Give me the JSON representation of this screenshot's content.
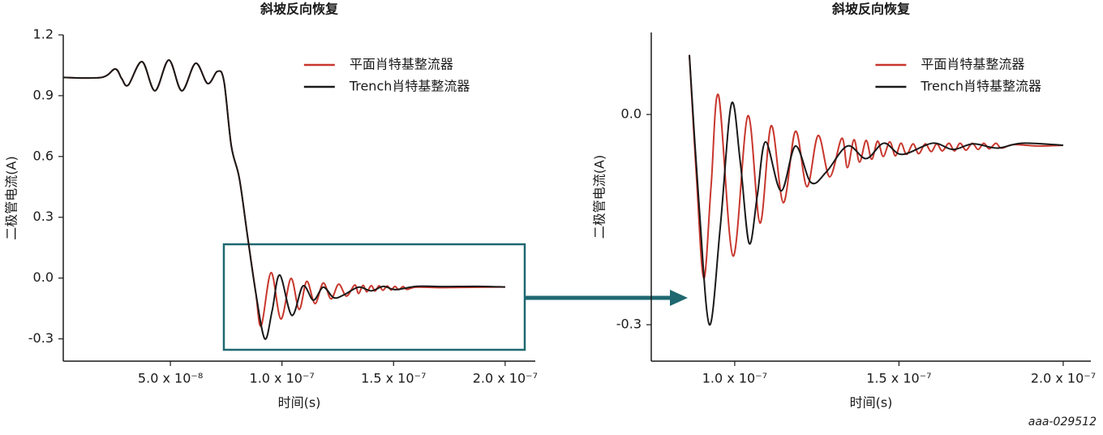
{
  "chart_data": [
    {
      "type": "line",
      "title": "斜坡反向恢复",
      "xlabel": "时间(s)",
      "ylabel": "二极管电流(A)",
      "xlim": [
        2e-09,
        2.135e-07
      ],
      "ylim": [
        -0.41,
        1.2
      ],
      "xticks": [
        {
          "value": 5e-08,
          "label": "5.0 x 10⁻⁸"
        },
        {
          "value": 1e-07,
          "label": "1.0 x 10⁻⁷"
        },
        {
          "value": 1.5e-07,
          "label": "1.5 x 10⁻⁷"
        },
        {
          "value": 2e-07,
          "label": "2.0 x 10⁻⁷"
        }
      ],
      "yticks": [
        1.2,
        0.9,
        0.6,
        0.3,
        {
          "value": 0,
          "label": "0.0"
        },
        -0.3
      ],
      "legend": "upper right",
      "series": [
        {
          "name": "平面肖特基整流器",
          "color": "#c8372d",
          "x": [
            2e-09,
            1.91e-08,
            2.53e-08,
            2.82e-08,
            3.11e-08,
            3.73e-08,
            4.31e-08,
            4.93e-08,
            5.51e-08,
            6.13e-08,
            6.67e-08,
            7.11e-08,
            7.4e-08,
            7.73e-08,
            8.09e-08,
            8.45e-08,
            8.82e-08,
            9.07e-08,
            9.51e-08,
            9.95e-08,
            1.04e-07,
            1.077e-07,
            1.111e-07,
            1.148e-07,
            1.185e-07,
            1.22e-07,
            1.254e-07,
            1.289e-07,
            1.326e-07,
            1.343e-07,
            1.363e-07,
            1.38e-07,
            1.4e-07,
            1.417e-07,
            1.435e-07,
            1.452e-07,
            1.472e-07,
            1.489e-07,
            1.506e-07,
            1.523e-07,
            1.543e-07,
            1.56e-07,
            1.6e-07,
            1.7e-07,
            1.8e-07,
            2e-07
          ],
          "values": [
            0.99,
            0.99,
            1.032,
            0.984,
            0.952,
            1.068,
            0.924,
            1.076,
            0.924,
            1.06,
            0.96,
            1.02,
            0.972,
            0.652,
            0.492,
            0.212,
            -0.068,
            -0.236,
            0.027,
            -0.202,
            -0.002,
            -0.155,
            -0.016,
            -0.126,
            -0.024,
            -0.103,
            -0.03,
            -0.089,
            -0.034,
            -0.076,
            -0.036,
            -0.068,
            -0.037,
            -0.064,
            -0.038,
            -0.06,
            -0.039,
            -0.059,
            -0.041,
            -0.057,
            -0.042,
            -0.056,
            -0.045,
            -0.047,
            -0.046,
            -0.044
          ]
        },
        {
          "name": "Trench肖特基整流器",
          "color": "#1a1a1a",
          "x": [
            2e-09,
            1.91e-08,
            2.53e-08,
            2.82e-08,
            3.11e-08,
            3.73e-08,
            4.31e-08,
            4.93e-08,
            5.51e-08,
            6.13e-08,
            6.67e-08,
            7.11e-08,
            7.4e-08,
            7.73e-08,
            8.09e-08,
            8.45e-08,
            8.82e-08,
            9.23e-08,
            9.56e-08,
            9.9e-08,
            1.044e-07,
            1.094e-07,
            1.141e-07,
            1.185e-07,
            1.232e-07,
            1.279e-07,
            1.343e-07,
            1.4e-07,
            1.454e-07,
            1.509e-07,
            1.602e-07,
            1.726e-07,
            1.874e-07,
            2e-07
          ],
          "values": [
            0.99,
            0.99,
            1.032,
            0.984,
            0.952,
            1.068,
            0.924,
            1.076,
            0.924,
            1.06,
            0.96,
            1.02,
            0.972,
            0.652,
            0.492,
            0.212,
            -0.068,
            -0.3,
            -0.161,
            0.015,
            -0.184,
            -0.039,
            -0.109,
            -0.045,
            -0.097,
            -0.082,
            -0.045,
            -0.063,
            -0.041,
            -0.057,
            -0.041,
            -0.042,
            -0.041,
            -0.044
          ]
        }
      ]
    },
    {
      "type": "line",
      "title": "斜坡反向恢复",
      "xlabel": "时间(s)",
      "ylabel": "二极管电流(A)",
      "xlim": [
        7.46e-08,
        2.084e-07
      ],
      "ylim": [
        -0.352,
        0.117
      ],
      "xticks": [
        {
          "value": 1e-07,
          "label": "1.0 x 10⁻⁷"
        },
        {
          "value": 1.5e-07,
          "label": "1.5 x 10⁻⁷"
        },
        {
          "value": 2e-07,
          "label": "2.0 x 10⁻⁷"
        }
      ],
      "yticks": [
        {
          "value": 0,
          "label": "0.0"
        },
        -0.3
      ],
      "legend": "upper right",
      "series": [
        {
          "name": "平面肖特基整流器",
          "color": "#c8372d",
          "x": [
            8.62e-08,
            8.84e-08,
            9.06e-08,
            9.28e-08,
            9.51e-08,
            9.95e-08,
            1.04e-07,
            1.077e-07,
            1.111e-07,
            1.148e-07,
            1.185e-07,
            1.22e-07,
            1.254e-07,
            1.289e-07,
            1.326e-07,
            1.343e-07,
            1.363e-07,
            1.38e-07,
            1.4e-07,
            1.417e-07,
            1.435e-07,
            1.452e-07,
            1.472e-07,
            1.489e-07,
            1.506e-07,
            1.523e-07,
            1.543e-07,
            1.56e-07,
            1.58e-07,
            1.598e-07,
            1.615e-07,
            1.632e-07,
            1.652e-07,
            1.669e-07,
            1.686e-07,
            1.704e-07,
            1.723e-07,
            1.741e-07,
            1.758e-07,
            1.775e-07,
            1.795e-07,
            1.812e-07,
            1.849e-07,
            1.923e-07,
            2e-07
          ],
          "values": [
            0.085,
            -0.092,
            -0.234,
            -0.103,
            0.027,
            -0.202,
            -0.002,
            -0.155,
            -0.016,
            -0.126,
            -0.024,
            -0.103,
            -0.03,
            -0.089,
            -0.034,
            -0.076,
            -0.036,
            -0.068,
            -0.037,
            -0.064,
            -0.038,
            -0.06,
            -0.039,
            -0.059,
            -0.041,
            -0.057,
            -0.042,
            -0.056,
            -0.042,
            -0.053,
            -0.042,
            -0.052,
            -0.041,
            -0.052,
            -0.041,
            -0.051,
            -0.041,
            -0.05,
            -0.041,
            -0.049,
            -0.041,
            -0.048,
            -0.043,
            -0.045,
            -0.044
          ]
        },
        {
          "name": "Trench肖特基整流器",
          "color": "#1a1a1a",
          "x": [
            8.62e-08,
            8.91e-08,
            9.23e-08,
            9.56e-08,
            9.9e-08,
            1.017e-07,
            1.044e-07,
            1.069e-07,
            1.094e-07,
            1.141e-07,
            1.185e-07,
            1.232e-07,
            1.279e-07,
            1.343e-07,
            1.4e-07,
            1.454e-07,
            1.509e-07,
            1.602e-07,
            1.664e-07,
            1.726e-07,
            1.8e-07,
            1.874e-07,
            2e-07
          ],
          "values": [
            0.085,
            -0.126,
            -0.3,
            -0.161,
            0.015,
            -0.068,
            -0.184,
            -0.115,
            -0.039,
            -0.109,
            -0.045,
            -0.097,
            -0.082,
            -0.045,
            -0.063,
            -0.041,
            -0.057,
            -0.041,
            -0.05,
            -0.042,
            -0.048,
            -0.041,
            -0.044
          ]
        }
      ]
    }
  ],
  "footer_code": "aaa-029512"
}
